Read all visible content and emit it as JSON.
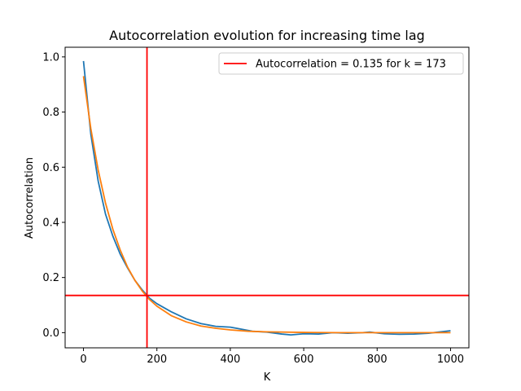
{
  "chart_data": {
    "type": "line",
    "title": "Autocorrelation evolution for increasing time lag",
    "xlabel": "K",
    "ylabel": "Autocorrelation",
    "xlim": [
      -50,
      1050
    ],
    "ylim": [
      -0.055,
      1.035
    ],
    "xticks": [
      0,
      200,
      400,
      600,
      800,
      1000
    ],
    "xtick_labels": [
      "0",
      "200",
      "400",
      "600",
      "800",
      "1000"
    ],
    "yticks": [
      0.0,
      0.2,
      0.4,
      0.6,
      0.8,
      1.0
    ],
    "ytick_labels": [
      "0.0",
      "0.2",
      "0.4",
      "0.6",
      "0.8",
      "1.0"
    ],
    "grid": false,
    "legend": {
      "position": "top-right",
      "entries": [
        {
          "label": "Autocorrelation = 0.135 for k = 173",
          "color": "#ff0000"
        }
      ]
    },
    "series": [
      {
        "color": "#1f77b4",
        "x": [
          0,
          20,
          40,
          60,
          80,
          100,
          120,
          140,
          160,
          180,
          200,
          240,
          280,
          320,
          360,
          400,
          420,
          460,
          500,
          540,
          565,
          600,
          640,
          680,
          720,
          760,
          780,
          820,
          860,
          900,
          940,
          1000
        ],
        "y": [
          0.985,
          0.72,
          0.55,
          0.43,
          0.35,
          0.285,
          0.235,
          0.19,
          0.155,
          0.125,
          0.105,
          0.075,
          0.05,
          0.033,
          0.023,
          0.02,
          0.015,
          0.005,
          0.002,
          -0.005,
          -0.008,
          -0.004,
          -0.005,
          0.0,
          -0.002,
          0.0,
          0.002,
          -0.004,
          -0.006,
          -0.005,
          -0.002,
          0.007
        ]
      },
      {
        "color": "#ff7f0e",
        "type": "exponential-fit",
        "x": [
          0,
          20,
          40,
          60,
          80,
          100,
          120,
          140,
          160,
          180,
          200,
          240,
          280,
          320,
          360,
          400,
          450,
          500,
          600,
          700,
          800,
          900,
          1000
        ],
        "y": [
          0.93,
          0.74,
          0.59,
          0.47,
          0.375,
          0.3,
          0.238,
          0.19,
          0.151,
          0.12,
          0.096,
          0.061,
          0.039,
          0.024,
          0.016,
          0.01,
          0.005,
          0.003,
          0.001,
          0.0,
          0.0,
          0.0,
          0.0
        ]
      }
    ],
    "reference_lines": [
      {
        "orientation": "vertical",
        "x": 173,
        "color": "#ff0000"
      },
      {
        "orientation": "horizontal",
        "y": 0.135,
        "color": "#ff0000"
      }
    ]
  }
}
